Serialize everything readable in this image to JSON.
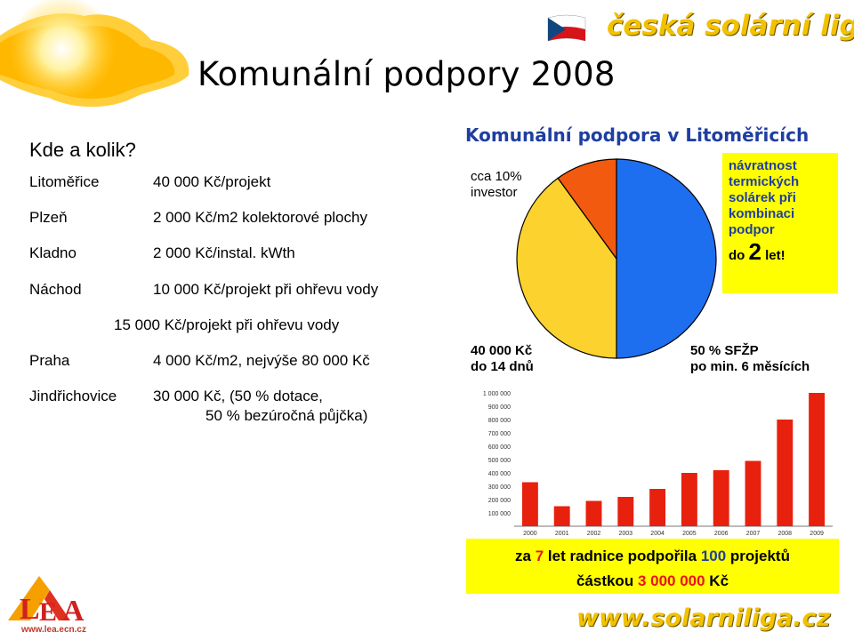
{
  "header": {
    "title": "Komunální podpory 2008",
    "brand": "česká solární liga"
  },
  "left": {
    "question": "Kde a kolik?",
    "rows": [
      {
        "city": "Litoměřice",
        "value": "40 000 Kč/projekt"
      },
      {
        "city": "Plzeň",
        "value": "2 000 Kč/m2 kolektorové plochy"
      },
      {
        "city": "Kladno",
        "value": "2 000 Kč/instal. kWth"
      },
      {
        "city": "Náchod",
        "value": "10 000 Kč/projekt při ohřevu vody"
      },
      {
        "city": "",
        "value": "15 000 Kč/projekt při ohřevu vody"
      },
      {
        "city": "Praha",
        "value": "4 000 Kč/m2, nejvýše 80 000 Kč"
      },
      {
        "city": "Jindřichovice",
        "value": "30 000 Kč, (50 % dotace,"
      },
      {
        "city": "",
        "value": "50 % bezúročná půjčka)"
      }
    ]
  },
  "pie": {
    "title": "Komunální podpora v Litoměřicích",
    "label_investor_1": "cca 10%",
    "label_investor_2": "investor",
    "label_city_1": "40 000 Kč",
    "label_city_2": "do 14 dnů",
    "label_sfzp_1": "50 % SFŽP",
    "label_sfzp_2": "po min. 6 měsících",
    "slices": [
      {
        "name": "50 % SFŽP",
        "value": 50,
        "color": "#1e6ff0"
      },
      {
        "name": "40 000 Kč",
        "value": 40,
        "color": "#fcd22e"
      },
      {
        "name": "cca 10% investor",
        "value": 10,
        "color": "#f25a10"
      }
    ]
  },
  "return_box": {
    "line1": "návratnost",
    "line2": "termických",
    "line3": "solárek při",
    "line4": "kombinaci",
    "line5": "podpor",
    "do": "do",
    "num": "2",
    "let": "let!"
  },
  "chart_data": {
    "type": "bar",
    "categories": [
      "2000",
      "2001",
      "2002",
      "2003",
      "2004",
      "2005",
      "2006",
      "2007",
      "2008",
      "2009"
    ],
    "values": [
      330000,
      150000,
      190000,
      220000,
      280000,
      400000,
      420000,
      490000,
      800000,
      1000000
    ],
    "ylabels": [
      "1 000 000",
      "900 000",
      "800 000",
      "700 000",
      "600 000",
      "500 000",
      "400 000",
      "300 000",
      "200 000",
      "100 000"
    ],
    "ylim": [
      0,
      1000000
    ],
    "color": "#e8200e"
  },
  "bottom": {
    "line1_a": "za ",
    "line1_b": "7",
    "line1_c": " let radnice podpořila ",
    "line1_d": "100",
    "line1_e": " projektů",
    "line2_a": "částkou ",
    "line2_b": "3 000 000",
    "line2_c": " Kč"
  },
  "footer": {
    "url": "www.solarniliga.cz",
    "lea_url": "www.lea.ecn.cz"
  }
}
